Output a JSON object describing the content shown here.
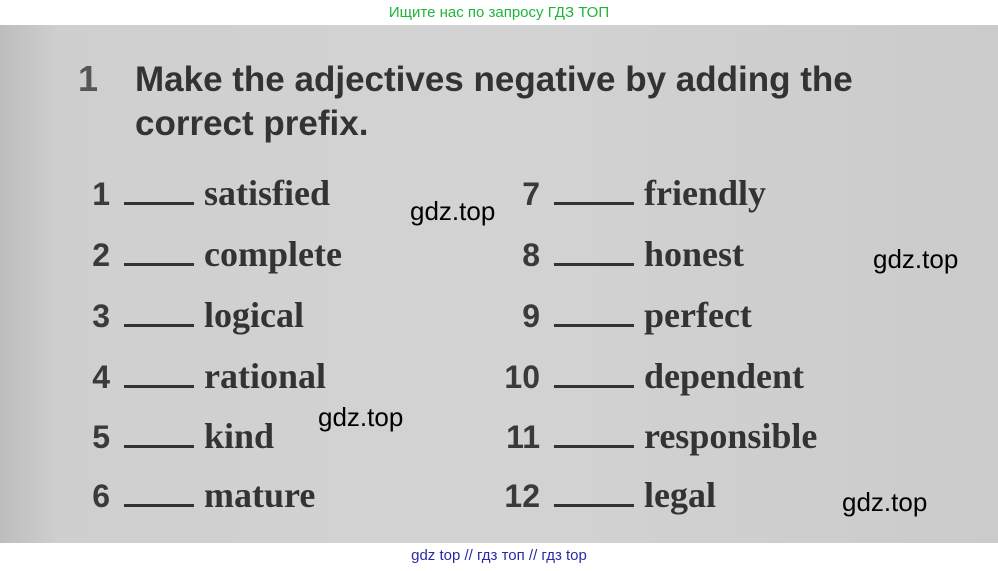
{
  "top_banner": "Ищите нас по запросу ГДЗ ТОП",
  "bottom_banner": "gdz top  //  гдз топ  //  гдз top",
  "exercise": {
    "number": "1",
    "title": "Make the adjectives negative by adding the correct prefix."
  },
  "items_left": [
    {
      "n": "1",
      "word": "satisfied"
    },
    {
      "n": "2",
      "word": "complete"
    },
    {
      "n": "3",
      "word": "logical"
    },
    {
      "n": "4",
      "word": "rational"
    },
    {
      "n": "5",
      "word": "kind"
    },
    {
      "n": "6",
      "word": "mature"
    }
  ],
  "items_right": [
    {
      "n": "7",
      "word": "friendly"
    },
    {
      "n": "8",
      "word": "honest"
    },
    {
      "n": "9",
      "word": "perfect"
    },
    {
      "n": "10",
      "word": "dependent"
    },
    {
      "n": "11",
      "word": "responsible"
    },
    {
      "n": "12",
      "word": "legal"
    }
  ],
  "watermarks": [
    "gdz.top",
    "gdz.top",
    "gdz.top",
    "gdz.top"
  ]
}
